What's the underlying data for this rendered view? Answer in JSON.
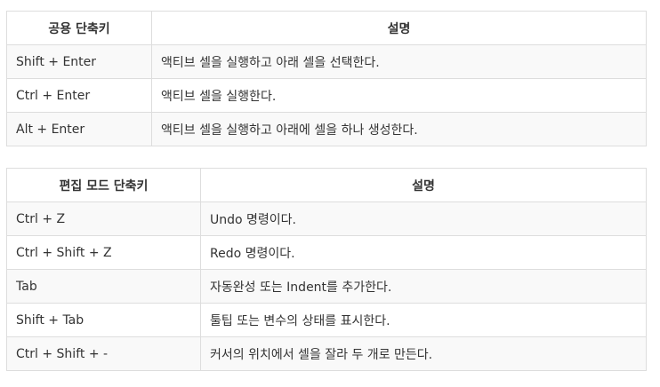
{
  "table1": {
    "headers": [
      "공용 단축키",
      "설명"
    ],
    "rows": [
      [
        "Shift + Enter",
        "액티브 셀을 실행하고 아래 셀을 선택한다."
      ],
      [
        "Ctrl + Enter",
        "액티브 셀을 실행한다."
      ],
      [
        "Alt + Enter",
        "액티브 셀을 실행하고 아래에 셀을 하나 생성한다."
      ]
    ]
  },
  "table2": {
    "headers": [
      "편집 모드 단축키",
      "설명"
    ],
    "rows": [
      [
        "Ctrl + Z",
        "Undo 명령이다."
      ],
      [
        "Ctrl + Shift + Z",
        "Redo 명령이다."
      ],
      [
        "Tab",
        "자동완성 또는 Indent를 추가한다."
      ],
      [
        "Shift + Tab",
        "툴팁 또는 변수의 상태를 표시한다."
      ],
      [
        "Ctrl + Shift + -",
        "커서의 위치에서 셀을 잘라 두 개로 만든다."
      ]
    ]
  }
}
